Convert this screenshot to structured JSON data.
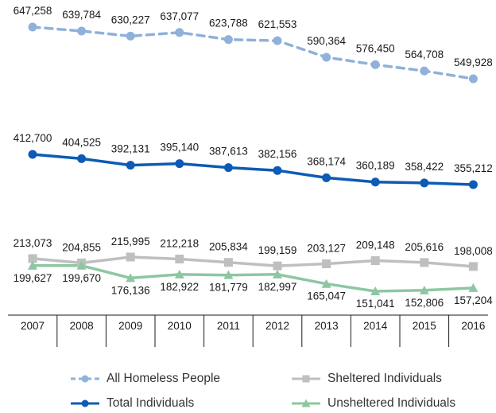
{
  "chart_data": {
    "type": "line",
    "categories": [
      "2007",
      "2008",
      "2009",
      "2010",
      "2011",
      "2012",
      "2013",
      "2014",
      "2015",
      "2016"
    ],
    "series": [
      {
        "name": "All Homeless People",
        "values": [
          647258,
          639784,
          630227,
          637077,
          623788,
          621553,
          590364,
          576450,
          564708,
          549928
        ],
        "labels": [
          "647,258",
          "639,784",
          "630,227",
          "637,077",
          "623,788",
          "621,553",
          "590,364",
          "576,450",
          "564,708",
          "549,928"
        ],
        "color": "#8FB1DA",
        "dash": "dashed",
        "marker": "circle"
      },
      {
        "name": "Total Individuals",
        "values": [
          412700,
          404525,
          392131,
          395140,
          387613,
          382156,
          368174,
          360189,
          358422,
          355212
        ],
        "labels": [
          "412,700",
          "404,525",
          "392,131",
          "395,140",
          "387,613",
          "382,156",
          "368,174",
          "360,189",
          "358,422",
          "355,212"
        ],
        "color": "#0D5BB5",
        "dash": "solid",
        "marker": "circle"
      },
      {
        "name": "Sheltered Individuals",
        "values": [
          213073,
          204855,
          215995,
          212218,
          205834,
          199159,
          203127,
          209148,
          205616,
          198008
        ],
        "labels": [
          "213,073",
          "204,855",
          "215,995",
          "212,218",
          "205,834",
          "199,159",
          "203,127",
          "209,148",
          "205,616",
          "198,008"
        ],
        "color": "#BFBFBF",
        "dash": "solid",
        "marker": "square"
      },
      {
        "name": "Unsheltered Individuals",
        "values": [
          199627,
          199670,
          176136,
          182922,
          181779,
          182997,
          165047,
          151041,
          152806,
          157204
        ],
        "labels": [
          "199,627",
          "199,670",
          "176,136",
          "182,922",
          "181,779",
          "182,997",
          "165,047",
          "151,041",
          "152,806",
          "157,204"
        ],
        "color": "#8DC7A2",
        "dash": "solid",
        "marker": "triangle"
      }
    ],
    "legend_position": "bottom",
    "grid": false
  }
}
